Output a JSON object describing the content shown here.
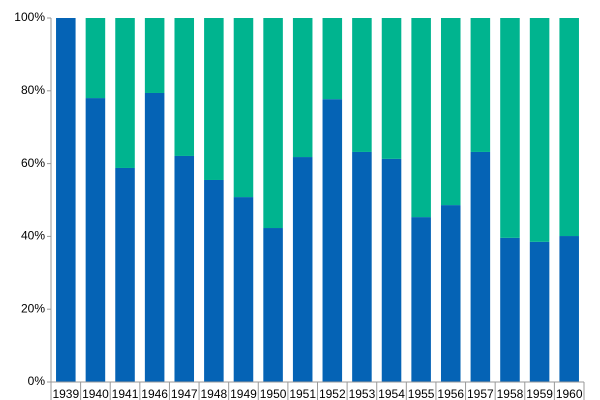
{
  "chart_data": {
    "type": "stacked-bar",
    "categories": [
      "1939",
      "1940",
      "1941",
      "1946",
      "1947",
      "1948",
      "1949",
      "1950",
      "1951",
      "1952",
      "1953",
      "1954",
      "1955",
      "1956",
      "1957",
      "1958",
      "1959",
      "1960"
    ],
    "series": [
      {
        "color": "#0563b5",
        "values": [
          100,
          78.0,
          58.8,
          79.4,
          62.1,
          55.5,
          50.8,
          42.3,
          61.8,
          77.7,
          63.2,
          61.3,
          45.3,
          48.6,
          63.2,
          39.6,
          38.5,
          40.1
        ]
      },
      {
        "color": "#00b48f",
        "values": [
          0,
          22.0,
          41.2,
          20.6,
          37.9,
          44.5,
          49.2,
          57.7,
          38.2,
          22.3,
          36.8,
          38.7,
          54.7,
          51.4,
          36.8,
          60.4,
          61.5,
          59.9
        ]
      }
    ],
    "ylim": [
      0,
      100
    ],
    "yticks": [
      {
        "value": 0,
        "label": "0%"
      },
      {
        "value": 20,
        "label": "20%"
      },
      {
        "value": 40,
        "label": "40%"
      },
      {
        "value": 60,
        "label": "60%"
      },
      {
        "value": 80,
        "label": "80%"
      },
      {
        "value": 100,
        "label": "100%"
      }
    ],
    "grid": false
  }
}
